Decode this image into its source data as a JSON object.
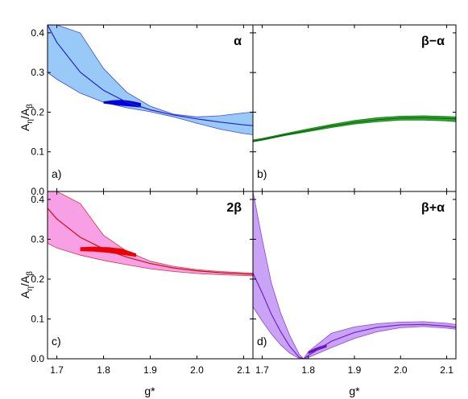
{
  "figure": {
    "xlabel": "g*",
    "ylabel_main": "A",
    "ylabel_sub1": "η",
    "ylabel_mid": "/A",
    "ylabel_sub2": "β"
  },
  "chart_data": [
    {
      "type": "line",
      "panel": "a)",
      "title": "α",
      "xlim": [
        1.68,
        2.12
      ],
      "ylim": [
        0.0,
        0.42
      ],
      "xticks": [
        "1.7",
        "1.8",
        "1.9",
        "2.0",
        "2.1"
      ],
      "yticks": [
        "0.0",
        "0.1",
        "0.2",
        "0.3",
        "0.4"
      ],
      "colors": {
        "band": "#99c9f7",
        "line": "#2222cc",
        "highlight": "#0000dd"
      },
      "x": [
        1.68,
        1.7,
        1.75,
        1.8,
        1.85,
        1.9,
        1.95,
        2.0,
        2.05,
        2.1,
        2.12
      ],
      "central": [
        0.42,
        0.376,
        0.301,
        0.255,
        0.225,
        0.206,
        0.193,
        0.183,
        0.175,
        0.168,
        0.166
      ],
      "upper": [
        0.42,
        0.42,
        0.4,
        0.31,
        0.25,
        0.215,
        0.195,
        0.188,
        0.191,
        0.198,
        0.2
      ],
      "lower": [
        0.3,
        0.283,
        0.248,
        0.225,
        0.211,
        0.201,
        0.188,
        0.172,
        0.157,
        0.146,
        0.143
      ],
      "highlight": {
        "x": [
          1.8,
          1.82,
          1.84,
          1.86,
          1.88
        ],
        "upper": [
          0.227,
          0.23,
          0.231,
          0.228,
          0.223
        ],
        "lower": [
          0.222,
          0.219,
          0.216,
          0.214,
          0.212
        ]
      }
    },
    {
      "type": "line",
      "panel": "b)",
      "title": "β−α",
      "xlim": [
        1.68,
        2.12
      ],
      "ylim": [
        0.0,
        0.42
      ],
      "xticks": [
        "1.7",
        "1.8",
        "1.9",
        "2.0",
        "2.1"
      ],
      "yticks": [
        "0.0",
        "0.1",
        "0.2",
        "0.3",
        "0.4"
      ],
      "colors": {
        "band": "#33aa33",
        "line": "#006600"
      },
      "x": [
        1.68,
        1.7,
        1.75,
        1.8,
        1.85,
        1.9,
        1.95,
        2.0,
        2.05,
        2.1,
        2.12
      ],
      "central": [
        0.127,
        0.131,
        0.143,
        0.154,
        0.165,
        0.174,
        0.181,
        0.185,
        0.186,
        0.184,
        0.183
      ],
      "upper": [
        0.13,
        0.134,
        0.146,
        0.158,
        0.169,
        0.179,
        0.186,
        0.19,
        0.191,
        0.189,
        0.188
      ],
      "lower": [
        0.125,
        0.129,
        0.141,
        0.151,
        0.161,
        0.17,
        0.176,
        0.18,
        0.18,
        0.178,
        0.176
      ]
    },
    {
      "type": "line",
      "panel": "c)",
      "title": "2β",
      "xlim": [
        1.68,
        2.12
      ],
      "ylim": [
        0.0,
        0.42
      ],
      "xticks": [
        "1.7",
        "1.8",
        "1.9",
        "2.0",
        "2.1"
      ],
      "yticks": [
        "0.0",
        "0.1",
        "0.2",
        "0.3",
        "0.4"
      ],
      "colors": {
        "band": "#f7a0e6",
        "line": "#cc1111",
        "highlight": "#ee0000"
      },
      "x": [
        1.68,
        1.7,
        1.75,
        1.8,
        1.85,
        1.9,
        1.95,
        2.0,
        2.05,
        2.1,
        2.12
      ],
      "central": [
        0.378,
        0.351,
        0.305,
        0.276,
        0.255,
        0.239,
        0.228,
        0.221,
        0.216,
        0.213,
        0.212
      ],
      "upper": [
        0.42,
        0.42,
        0.39,
        0.31,
        0.27,
        0.245,
        0.232,
        0.224,
        0.219,
        0.216,
        0.215
      ],
      "lower": [
        0.29,
        0.278,
        0.26,
        0.247,
        0.236,
        0.226,
        0.219,
        0.214,
        0.211,
        0.209,
        0.208
      ],
      "highlight": {
        "x": [
          1.75,
          1.78,
          1.81,
          1.84,
          1.87
        ],
        "upper": [
          0.28,
          0.281,
          0.28,
          0.276,
          0.264
        ],
        "lower": [
          0.27,
          0.269,
          0.266,
          0.261,
          0.256
        ]
      }
    },
    {
      "type": "line",
      "panel": "d)",
      "title": "β+α",
      "xlim": [
        1.68,
        2.12
      ],
      "ylim": [
        0.0,
        0.42
      ],
      "xticks": [
        "1.7",
        "1.8",
        "1.9",
        "2.0",
        "2.1"
      ],
      "yticks": [
        "0.0",
        "0.1",
        "0.2",
        "0.3",
        "0.4"
      ],
      "colors": {
        "band": "#c9a3f5",
        "line": "#7722cc",
        "highlight": "#6611bb"
      },
      "x": [
        1.68,
        1.7,
        1.72,
        1.74,
        1.76,
        1.78,
        1.79,
        1.8,
        1.85,
        1.9,
        1.95,
        2.0,
        2.05,
        2.1,
        2.12
      ],
      "central": [
        0.215,
        0.165,
        0.112,
        0.068,
        0.031,
        0.004,
        0.0,
        0.008,
        0.044,
        0.066,
        0.079,
        0.085,
        0.086,
        0.082,
        0.079
      ],
      "upper": [
        0.42,
        0.3,
        0.19,
        0.115,
        0.058,
        0.012,
        0.0,
        0.018,
        0.064,
        0.08,
        0.088,
        0.092,
        0.093,
        0.089,
        0.086
      ],
      "lower": [
        0.13,
        0.095,
        0.062,
        0.035,
        0.014,
        0.001,
        0.0,
        0.003,
        0.028,
        0.051,
        0.068,
        0.078,
        0.081,
        0.077,
        0.074
      ],
      "highlight": {
        "x": [
          1.8,
          1.81,
          1.82,
          1.83,
          1.84
        ],
        "upper": [
          0.018,
          0.024,
          0.029,
          0.033,
          0.037
        ],
        "lower": [
          0.012,
          0.017,
          0.021,
          0.025,
          0.029
        ]
      }
    }
  ]
}
